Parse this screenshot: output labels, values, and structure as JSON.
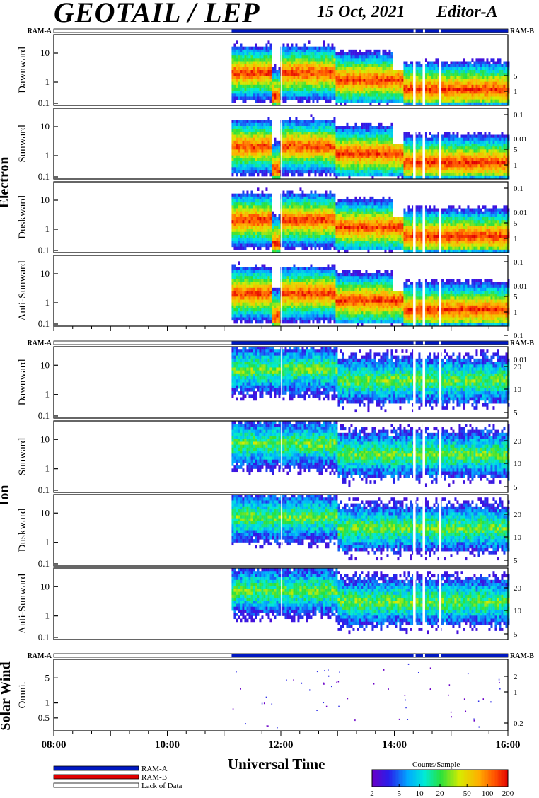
{
  "header": {
    "title": "GEOTAIL / LEP",
    "date": "15 Oct, 2021",
    "editor": "Editor-A"
  },
  "chart_data": {
    "type": "heatmap",
    "xlabel": "Universal Time",
    "x_ticks": [
      "08:00",
      "10:00",
      "12:00",
      "14:00",
      "16:00"
    ],
    "xlim": [
      "08:00",
      "16:00"
    ],
    "data_start": "11:08",
    "data_gaps": [
      "14:21",
      "14:31",
      "14:48"
    ],
    "ram_labels": {
      "left": "RAM-A",
      "right": "RAM-B"
    },
    "groups": [
      {
        "name": "Electron",
        "y_ticks_left": [
          "10",
          "1",
          "0.1"
        ],
        "panels": [
          {
            "name": "Dawnward",
            "y_ticks_right": [
              "5",
              "1",
              "0.1",
              "0.01"
            ]
          },
          {
            "name": "Sunward",
            "y_ticks_right": [
              "5",
              "1",
              "0.1",
              "0.01"
            ]
          },
          {
            "name": "Duskward",
            "y_ticks_right": [
              "5",
              "1",
              "0.1",
              "0.01"
            ]
          },
          {
            "name": "Anti-Sunward",
            "y_ticks_right": [
              "5",
              "1",
              "0.1",
              "0.01"
            ]
          }
        ]
      },
      {
        "name": "Ion",
        "y_ticks_left": [
          "10",
          "1",
          "0.1"
        ],
        "panels": [
          {
            "name": "Dawnward",
            "y_ticks_right": [
              "20",
              "10",
              "5"
            ]
          },
          {
            "name": "Sunward",
            "y_ticks_right": [
              "20",
              "10",
              "5"
            ]
          },
          {
            "name": "Duskward",
            "y_ticks_right": [
              "20",
              "10",
              "5"
            ]
          },
          {
            "name": "Anti-Sunward",
            "y_ticks_right": [
              "20",
              "10",
              "5"
            ]
          }
        ]
      },
      {
        "name": "Solar Wind",
        "y_ticks_left": [
          "5",
          "1",
          "0.5"
        ],
        "panels": [
          {
            "name": "Omni.",
            "y_ticks_right": [
              "2",
              "1",
              "0.2"
            ]
          }
        ]
      }
    ],
    "colorbar": {
      "title": "Counts/Sample",
      "ticks": [
        "2",
        "5",
        "10",
        "20",
        "50",
        "100",
        "200"
      ],
      "range": [
        2,
        200
      ],
      "scale": "log"
    },
    "legend": [
      {
        "label": "RAM-A",
        "color": "#0018c0"
      },
      {
        "label": "RAM-B",
        "color": "#e00000"
      },
      {
        "label": "Lack of Data",
        "color": "#ffffff"
      }
    ]
  }
}
